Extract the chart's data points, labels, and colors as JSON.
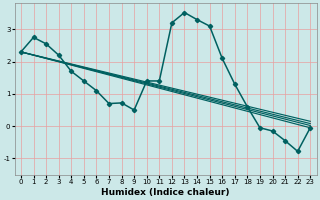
{
  "xlabel": "Humidex (Indice chaleur)",
  "background_color": "#cce8e8",
  "grid_color_h": "#e8a0a0",
  "grid_color_v": "#e8a0a0",
  "line_color": "#006060",
  "xlim": [
    -0.5,
    23.5
  ],
  "ylim": [
    -1.5,
    3.8
  ],
  "x_ticks": [
    0,
    1,
    2,
    3,
    4,
    5,
    6,
    7,
    8,
    9,
    10,
    11,
    12,
    13,
    14,
    15,
    16,
    17,
    18,
    19,
    20,
    21,
    22,
    23
  ],
  "y_ticks": [
    -1,
    0,
    1,
    2,
    3
  ],
  "main_series": {
    "x": [
      0,
      1,
      2,
      3,
      4,
      5,
      6,
      7,
      8,
      9,
      10,
      11,
      12,
      13,
      14,
      15,
      16,
      17,
      18,
      19,
      20,
      21,
      22,
      23
    ],
    "y": [
      2.3,
      2.75,
      2.55,
      2.2,
      1.7,
      1.4,
      1.1,
      0.7,
      0.72,
      0.5,
      1.4,
      1.4,
      3.2,
      3.52,
      3.3,
      3.1,
      2.1,
      1.3,
      0.6,
      -0.05,
      -0.15,
      -0.45,
      -0.78,
      -0.05
    ]
  },
  "straight_lines": [
    {
      "x": [
        0,
        23
      ],
      "y": [
        2.3,
        -0.05
      ]
    },
    {
      "x": [
        0,
        23
      ],
      "y": [
        2.3,
        0.02
      ]
    },
    {
      "x": [
        0,
        23
      ],
      "y": [
        2.3,
        0.08
      ]
    },
    {
      "x": [
        0,
        23
      ],
      "y": [
        2.3,
        0.15
      ]
    }
  ],
  "xlabel_fontsize": 6.5,
  "tick_fontsize": 5.0
}
